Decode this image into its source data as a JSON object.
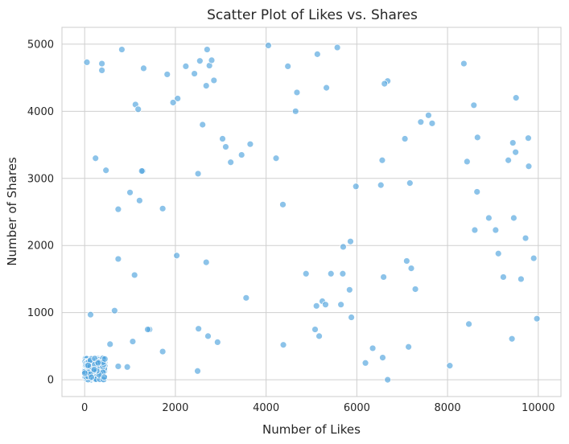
{
  "chart_data": {
    "type": "scatter",
    "title": "Scatter Plot of Likes vs. Shares",
    "xlabel": "Number of Likes",
    "ylabel": "Number of Shares",
    "xlim": [
      -500,
      10500
    ],
    "ylim": [
      -250,
      5250
    ],
    "xticks": [
      0,
      2000,
      4000,
      6000,
      8000,
      10000
    ],
    "yticks": [
      0,
      1000,
      2000,
      3000,
      4000,
      5000
    ],
    "grid": true,
    "point_color": "#4fa3dd",
    "series": [
      {
        "x": [
          50,
          380,
          380,
          820,
          1300,
          1820,
          2230,
          2420,
          2540,
          2750,
          2680,
          2800,
          2850,
          4050,
          4480,
          5130,
          5570,
          2050,
          1950,
          1120,
          1180,
          1280,
          2700,
          4680,
          4650,
          5330,
          6680,
          6610,
          8360,
          8580,
          9510,
          2500,
          3220,
          3460,
          3650,
          3040,
          3110,
          2600,
          240,
          470,
          1260,
          4220,
          6560,
          7580,
          7410,
          7660,
          7060,
          8660,
          8430,
          9440,
          9500,
          9780,
          9340,
          9790,
          5980,
          7170,
          6530,
          1000,
          1210,
          4370,
          740,
          1720,
          8650,
          8910,
          8600,
          9060,
          9460,
          9720,
          5860,
          5700,
          9900,
          9120,
          9620,
          9230,
          2030,
          740,
          2680,
          1100,
          4880,
          5430,
          5690,
          6590,
          7100,
          7200,
          5840,
          7290,
          3560,
          5240,
          5110,
          5310,
          5650,
          130,
          660,
          5880,
          9970,
          1430,
          1390,
          2510,
          5080,
          5170,
          8470,
          9420,
          2720,
          2930,
          1060,
          560,
          4380,
          7140,
          6350,
          1720,
          740,
          940,
          6570,
          6190,
          8050,
          2490,
          6680
        ],
        "y": [
          4730,
          4710,
          4610,
          4920,
          4640,
          4550,
          4670,
          4560,
          4750,
          4680,
          4380,
          4760,
          4460,
          4980,
          4670,
          4850,
          4950,
          4190,
          4130,
          4100,
          4030,
          3110,
          4920,
          4280,
          4000,
          4350,
          4450,
          4410,
          4710,
          4090,
          4200,
          3070,
          3240,
          3350,
          3510,
          3590,
          3470,
          3800,
          3300,
          3120,
          3110,
          3300,
          3270,
          3940,
          3840,
          3820,
          3590,
          3610,
          3250,
          3530,
          3390,
          3600,
          3270,
          3180,
          2880,
          2930,
          2900,
          2790,
          2670,
          2610,
          2540,
          2550,
          2800,
          2410,
          2230,
          2230,
          2410,
          2110,
          2060,
          1980,
          1810,
          1880,
          1500,
          1530,
          1850,
          1800,
          1750,
          1560,
          1580,
          1580,
          1580,
          1530,
          1770,
          1660,
          1340,
          1350,
          1220,
          1170,
          1100,
          1120,
          1120,
          970,
          1030,
          930,
          910,
          750,
          750,
          760,
          750,
          650,
          830,
          610,
          650,
          560,
          570,
          530,
          520,
          490,
          470,
          420,
          200,
          190,
          330,
          250,
          210,
          130,
          0
        ]
      }
    ],
    "cluster": {
      "x_range": [
        0,
        450
      ],
      "y_range": [
        0,
        320
      ],
      "count": 300
    }
  }
}
